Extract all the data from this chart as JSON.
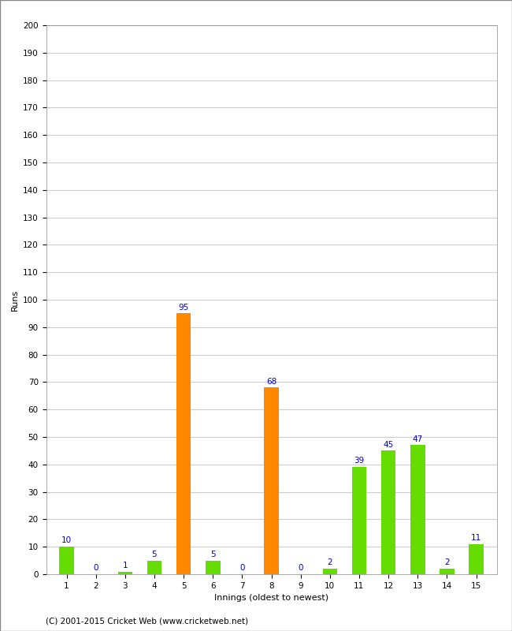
{
  "xlabel": "Innings (oldest to newest)",
  "ylabel": "Runs",
  "categories": [
    1,
    2,
    3,
    4,
    5,
    6,
    7,
    8,
    9,
    10,
    11,
    12,
    13,
    14,
    15
  ],
  "values": [
    10,
    0,
    1,
    5,
    95,
    5,
    0,
    68,
    0,
    2,
    39,
    45,
    47,
    2,
    11
  ],
  "colors": [
    "#66dd00",
    "#66dd00",
    "#66dd00",
    "#66dd00",
    "#ff8800",
    "#66dd00",
    "#66dd00",
    "#ff8800",
    "#66dd00",
    "#66dd00",
    "#66dd00",
    "#66dd00",
    "#66dd00",
    "#66dd00",
    "#66dd00"
  ],
  "ylim": [
    0,
    200
  ],
  "yticks": [
    0,
    10,
    20,
    30,
    40,
    50,
    60,
    70,
    80,
    90,
    100,
    110,
    120,
    130,
    140,
    150,
    160,
    170,
    180,
    190,
    200
  ],
  "label_color": "#0000cc",
  "grid_color": "#cccccc",
  "background_color": "#ffffff",
  "border_color": "#aaaaaa",
  "footer": "(C) 2001-2015 Cricket Web (www.cricketweb.net)",
  "label_fontsize": 7.5,
  "axis_label_fontsize": 8,
  "tick_fontsize": 7.5,
  "footer_fontsize": 7.5,
  "bar_width": 0.5
}
